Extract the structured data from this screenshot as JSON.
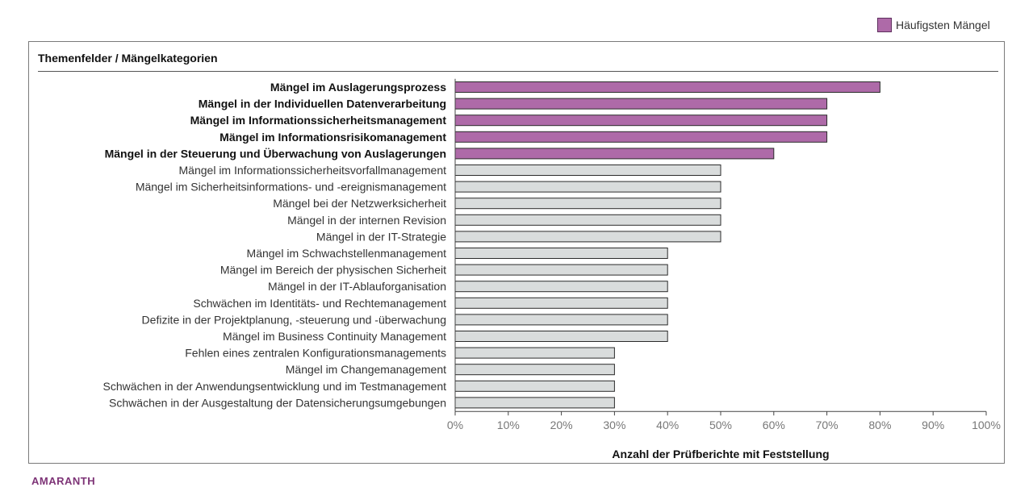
{
  "legend": {
    "label": "Häufigsten Mängel"
  },
  "section_title": "Themenfelder / Mängelkategorien",
  "brand": "AMARANTH",
  "colors": {
    "highlight": "#ae6aa8",
    "normal": "#d9dcdc",
    "bar_border": "#2b2b2b",
    "brand": "#7e3477",
    "tick": "#777777"
  },
  "chart_data": {
    "type": "bar",
    "orientation": "horizontal",
    "xlabel": "Anzahl der Prüfberichte mit Feststellung",
    "ylabel": "",
    "xlim": [
      0,
      100
    ],
    "x_ticks": [
      0,
      10,
      20,
      30,
      40,
      50,
      60,
      70,
      80,
      90,
      100
    ],
    "tick_format": "{v}%",
    "grid": false,
    "legend_position": "top-right",
    "categories": [
      "Mängel im Auslagerungsprozess",
      "Mängel in der Individuellen Datenverarbeitung",
      "Mängel im Informationssicherheitsmanagement",
      "Mängel im Informationsrisikomanagement",
      "Mängel in der Steuerung und Überwachung von Auslagerungen",
      "Mängel im Informationssicherheitsvorfallmanagement",
      "Mängel im Sicherheitsinformations- und -ereignismanagement",
      "Mängel bei der Netzwerksicherheit",
      "Mängel in der internen Revision",
      "Mängel in der IT-Strategie",
      "Mängel im Schwachstellenmanagement",
      "Mängel im Bereich der physischen Sicherheit",
      "Mängel in der IT-Ablauforganisation",
      "Schwächen im Identitäts- und Rechtemanagement",
      "Defizite in der Projektplanung, -steuerung und -überwachung",
      "Mängel im Business Continuity Management",
      "Fehlen eines zentralen Konfigurationsmanagements",
      "Mängel im Changemanagement",
      "Schwächen in der Anwendungsentwicklung und im Testmanagement",
      "Schwächen in der Ausgestaltung der Datensicherungsumgebungen"
    ],
    "values": [
      80,
      70,
      70,
      70,
      60,
      50,
      50,
      50,
      50,
      50,
      40,
      40,
      40,
      40,
      40,
      40,
      30,
      30,
      30,
      30
    ],
    "highlighted": [
      true,
      true,
      true,
      true,
      true,
      false,
      false,
      false,
      false,
      false,
      false,
      false,
      false,
      false,
      false,
      false,
      false,
      false,
      false,
      false
    ]
  }
}
